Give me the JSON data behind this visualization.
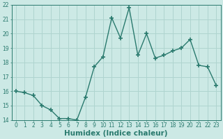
{
  "x": [
    0,
    1,
    2,
    3,
    4,
    5,
    6,
    7,
    8,
    9,
    10,
    11,
    12,
    13,
    14,
    15,
    16,
    17,
    18,
    19,
    20,
    21,
    22,
    23
  ],
  "y": [
    16.0,
    15.9,
    15.7,
    15.0,
    14.7,
    14.1,
    14.1,
    14.0,
    15.6,
    17.7,
    18.4,
    21.1,
    19.7,
    21.8,
    18.5,
    20.0,
    18.3,
    18.5,
    18.8,
    19.0,
    19.6,
    17.8,
    17.7,
    16.4
  ],
  "line_color": "#2a7a6e",
  "marker": "+",
  "marker_size": 4,
  "marker_lw": 1.2,
  "bg_color": "#cce9e5",
  "grid_color": "#afd4cf",
  "xlabel": "Humidex (Indice chaleur)",
  "ylim": [
    14,
    22
  ],
  "xlim": [
    -0.5,
    23.5
  ],
  "yticks": [
    14,
    15,
    16,
    17,
    18,
    19,
    20,
    21,
    22
  ],
  "xticks": [
    0,
    1,
    2,
    3,
    4,
    5,
    6,
    7,
    8,
    9,
    10,
    11,
    12,
    13,
    14,
    15,
    16,
    17,
    18,
    19,
    20,
    21,
    22,
    23
  ],
  "tick_label_fontsize": 5.5,
  "xlabel_fontsize": 7.5,
  "linewidth": 1.0
}
